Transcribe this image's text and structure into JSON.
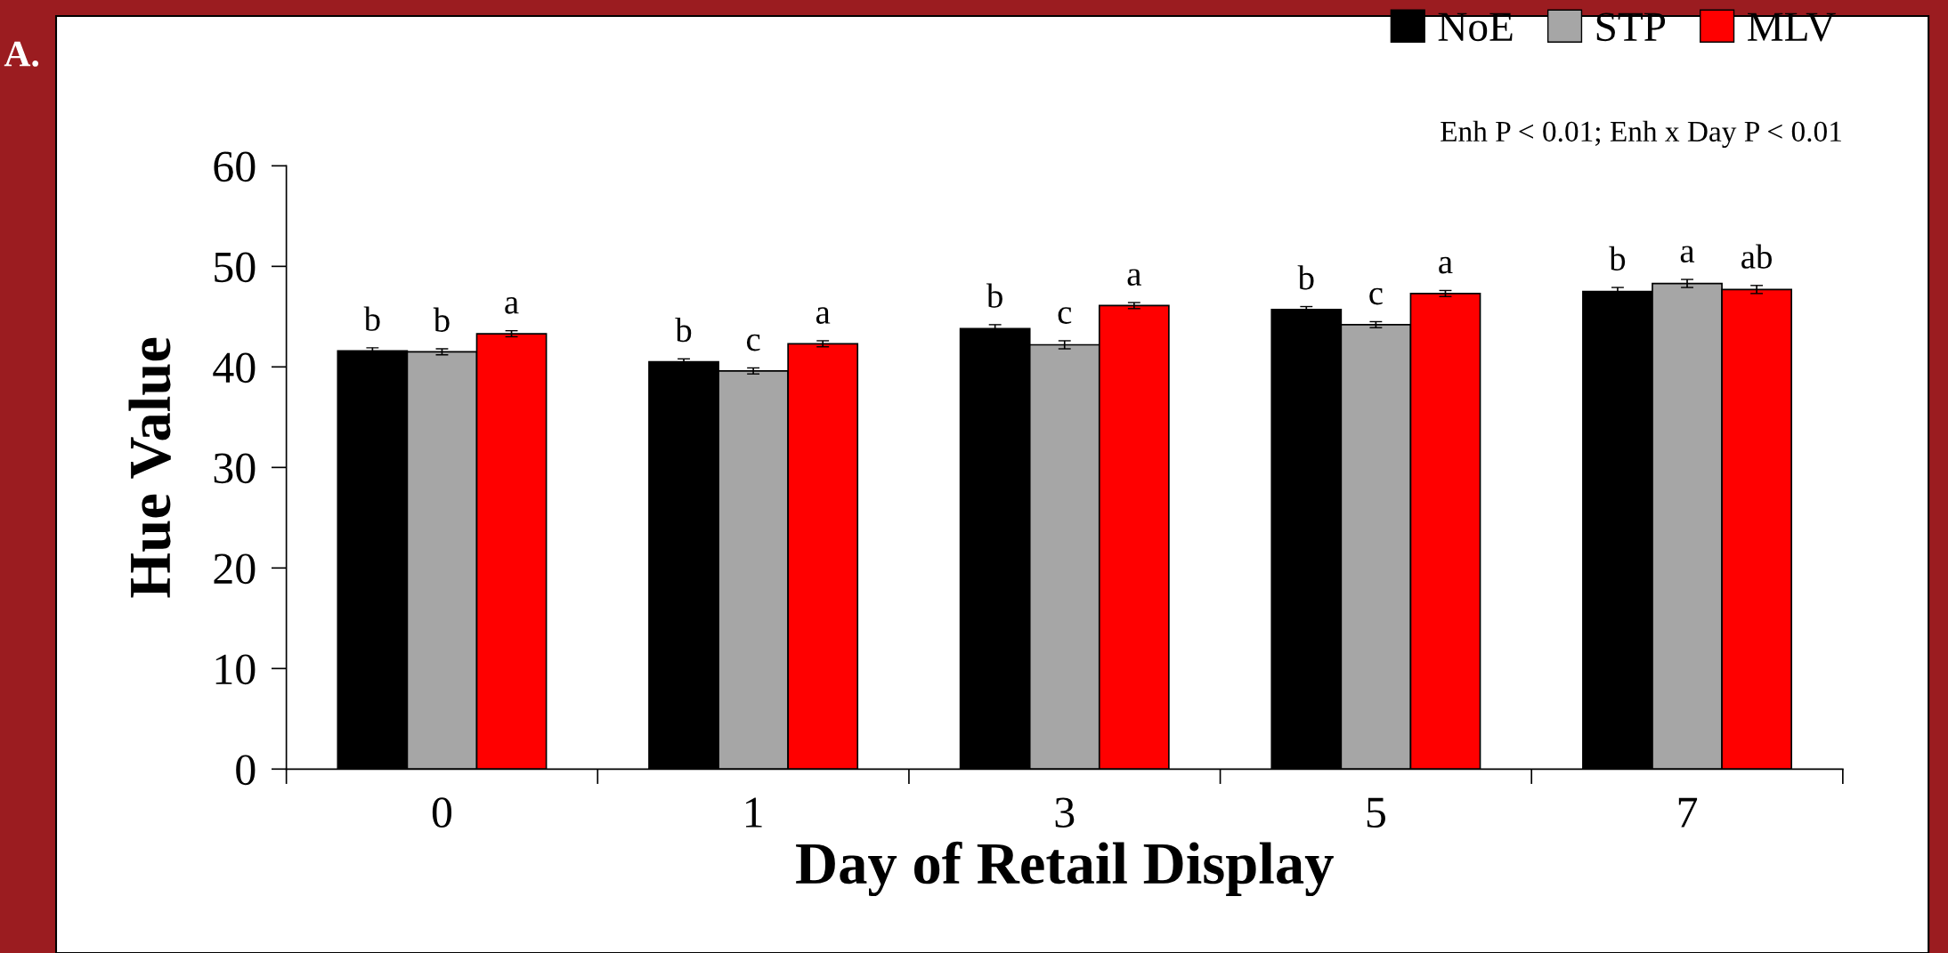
{
  "chart_data": {
    "type": "bar",
    "xlabel": "Day of Retail Display",
    "ylabel": "Hue Value",
    "categories": [
      "0",
      "1",
      "3",
      "5",
      "7"
    ],
    "series": [
      {
        "name": "NoE",
        "color": "#000000",
        "values": [
          41.6,
          40.5,
          43.8,
          45.7,
          47.5
        ],
        "errors": [
          0.3,
          0.3,
          0.4,
          0.3,
          0.4
        ],
        "value_labels": [
          "b",
          "b",
          "b",
          "b",
          "b"
        ]
      },
      {
        "name": "STP",
        "color": "#a6a6a6",
        "values": [
          41.5,
          39.6,
          42.2,
          44.2,
          48.3
        ],
        "errors": [
          0.3,
          0.3,
          0.4,
          0.3,
          0.4
        ],
        "value_labels": [
          "b",
          "c",
          "c",
          "c",
          "a"
        ]
      },
      {
        "name": "MLV",
        "color": "#ff0000",
        "values": [
          43.3,
          42.3,
          46.1,
          47.3,
          47.7
        ],
        "errors": [
          0.3,
          0.3,
          0.3,
          0.3,
          0.4
        ],
        "value_labels": [
          "a",
          "a",
          "a",
          "a",
          "ab"
        ]
      }
    ],
    "ylim": [
      0,
      60
    ],
    "yticks": [
      0,
      10,
      20,
      30,
      40,
      50,
      60
    ],
    "grid": false,
    "legend": "top right",
    "annotations": [
      "Enh P < 0.01; Enh x Day P < 0.01",
      "A."
    ]
  }
}
